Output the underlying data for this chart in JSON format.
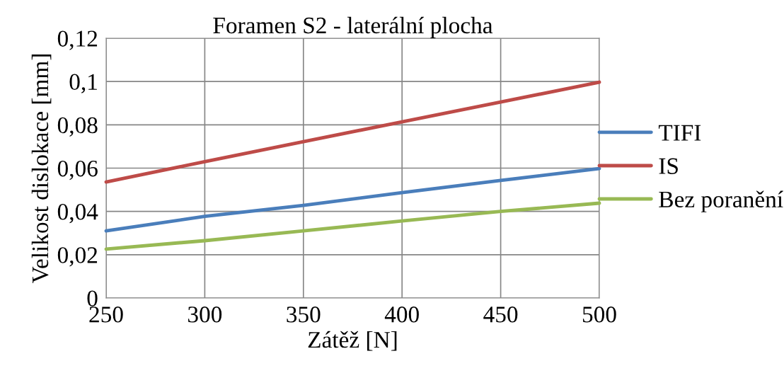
{
  "chart_data": {
    "type": "line",
    "title": "Foramen S2 - laterální plocha",
    "xlabel": "Zátěž [N]",
    "ylabel": "Velikost dislokace [mm]",
    "x": [
      250,
      300,
      350,
      400,
      450,
      500
    ],
    "series": [
      {
        "name": "TIFI",
        "color": "#4a7ebb",
        "values": [
          0.031,
          0.0377,
          0.0428,
          0.0487,
          0.0543,
          0.0598
        ]
      },
      {
        "name": "IS",
        "color": "#be4b48",
        "values": [
          0.0536,
          0.063,
          0.0722,
          0.0814,
          0.0905,
          0.0997
        ]
      },
      {
        "name": "Bez poranění",
        "color": "#98b954",
        "values": [
          0.0226,
          0.0265,
          0.031,
          0.0356,
          0.04,
          0.0438
        ]
      }
    ],
    "xlim": [
      250,
      500
    ],
    "xticks": [
      250,
      300,
      350,
      400,
      450,
      500
    ],
    "ylim": [
      0,
      0.12
    ],
    "yticks": [
      0,
      {
        "value": 0.02,
        "label": "0,02"
      },
      {
        "value": 0.04,
        "label": "0,04"
      },
      {
        "value": 0.06,
        "label": "0,06"
      },
      {
        "value": 0.08,
        "label": "0,08"
      },
      {
        "value": 0.1,
        "label": "0,1"
      },
      {
        "value": 0.12,
        "label": "0,12"
      }
    ],
    "grid": true,
    "legend": "right",
    "marker": "none",
    "line_style": "solid"
  }
}
